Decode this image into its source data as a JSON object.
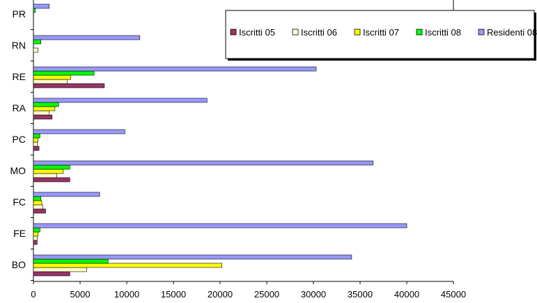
{
  "chart_data": {
    "type": "bar",
    "orientation": "horizontal",
    "categories": [
      "BO",
      "FE",
      "FC",
      "MO",
      "PC",
      "RA",
      "RE",
      "RN",
      "PR"
    ],
    "series": [
      {
        "name": "Iscritti 05",
        "color": "#993366",
        "values": [
          3900,
          400,
          1300,
          3900,
          600,
          2000,
          7600,
          0,
          0
        ]
      },
      {
        "name": "Iscritti 06",
        "color": "#ffffcc",
        "values": [
          5700,
          400,
          1000,
          2500,
          400,
          1700,
          3600,
          500,
          0
        ]
      },
      {
        "name": "Iscritti 07",
        "color": "#ffff00",
        "values": [
          20200,
          500,
          900,
          3200,
          500,
          2300,
          4000,
          0,
          0
        ]
      },
      {
        "name": "Iscritti 08",
        "color": "#00ff00",
        "values": [
          8000,
          700,
          800,
          3900,
          700,
          2700,
          6500,
          800,
          200
        ]
      },
      {
        "name": "Residenti 08",
        "color": "#9999ff",
        "values": [
          34100,
          40000,
          7100,
          36400,
          9800,
          18600,
          30300,
          11400,
          1700
        ]
      }
    ],
    "xlim": [
      0,
      45000
    ],
    "xticks": [
      "0",
      "5000",
      "10000",
      "15000",
      "20000",
      "25000",
      "30000",
      "35000",
      "40000",
      "45000"
    ],
    "legend_position": "top-right"
  }
}
